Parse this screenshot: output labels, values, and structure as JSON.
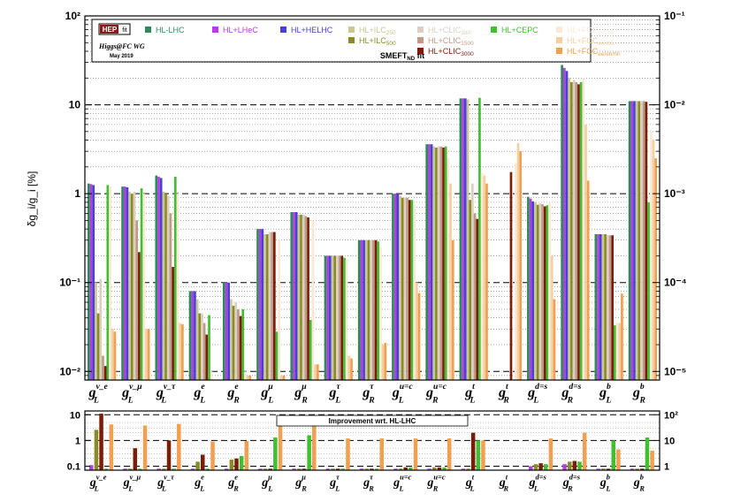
{
  "chart_data": [
    {
      "type": "bar",
      "ylabel": "δg_i/g_i [%]",
      "yscale": "log",
      "ylim": [
        0.008,
        100
      ],
      "yticks": [
        "10²",
        "10",
        "1",
        "10⁻¹",
        "10⁻²"
      ],
      "yticks_right": [
        "10⁻¹",
        "10⁻²",
        "10⁻³",
        "10⁻⁴",
        "10⁻⁵"
      ],
      "logo": "HEPfit",
      "wg_label": "Higgs@FC WG",
      "date_label": "May 2019",
      "fit_label": "SMEFT_ND fit",
      "categories": [
        {
          "base": "g",
          "sup": "ν_e",
          "sub": "L"
        },
        {
          "base": "g",
          "sup": "ν_μ",
          "sub": "L"
        },
        {
          "base": "g",
          "sup": "ν_τ",
          "sub": "L"
        },
        {
          "base": "g",
          "sup": "e",
          "sub": "L"
        },
        {
          "base": "g",
          "sup": "e",
          "sub": "R"
        },
        {
          "base": "g",
          "sup": "μ",
          "sub": "L"
        },
        {
          "base": "g",
          "sup": "μ",
          "sub": "R"
        },
        {
          "base": "g",
          "sup": "τ",
          "sub": "L"
        },
        {
          "base": "g",
          "sup": "τ",
          "sub": "R"
        },
        {
          "base": "g",
          "sup": "u=c",
          "sub": "L"
        },
        {
          "base": "g",
          "sup": "u=c",
          "sub": "R"
        },
        {
          "base": "g",
          "sup": "t",
          "sub": "L"
        },
        {
          "base": "g",
          "sup": "t",
          "sub": "R"
        },
        {
          "base": "g",
          "sup": "d=s",
          "sub": "L"
        },
        {
          "base": "g",
          "sup": "d=s",
          "sub": "R"
        },
        {
          "base": "g",
          "sup": "b",
          "sub": "L"
        },
        {
          "base": "g",
          "sup": "b",
          "sub": "R"
        }
      ],
      "series": [
        {
          "name": "HL-LHC",
          "color": "#2e8b57",
          "values": [
            1.3,
            1.2,
            1.6,
            0.08,
            0.1,
            0.4,
            0.62,
            0.2,
            0.3,
            1.0,
            3.6,
            11.8,
            null,
            0.92,
            28,
            0.35,
            11
          ]
        },
        {
          "name": "HL+LHeC",
          "color": "#b040e0",
          "values": [
            1.28,
            1.2,
            1.55,
            0.08,
            0.1,
            0.4,
            0.62,
            0.2,
            0.3,
            1.0,
            3.6,
            11.8,
            null,
            0.88,
            26,
            0.35,
            11
          ]
        },
        {
          "name": "HL+HELHC",
          "color": "#4a40d8",
          "values": [
            1.25,
            1.18,
            1.5,
            0.08,
            0.1,
            0.4,
            0.62,
            0.2,
            0.3,
            1.0,
            3.6,
            11.8,
            null,
            0.82,
            24,
            0.35,
            11
          ]
        },
        {
          "name": "HL+ILC250",
          "color": "#c8c890",
          "values": [
            0.1,
            1.05,
            1.05,
            0.065,
            0.065,
            0.35,
            0.58,
            0.2,
            0.3,
            0.95,
            3.4,
            11.5,
            null,
            0.8,
            20,
            0.35,
            11
          ]
        },
        {
          "name": "HL+ILC500",
          "color": "#8a8a28",
          "values": [
            0.045,
            1.0,
            1.0,
            0.045,
            0.055,
            0.35,
            0.58,
            0.2,
            0.3,
            0.9,
            3.3,
            0.85,
            null,
            0.75,
            18,
            0.35,
            11
          ]
        },
        {
          "name": "HL+CLIC380",
          "color": "#dccfc0",
          "values": [
            0.11,
            1.05,
            0.95,
            0.045,
            0.06,
            0.37,
            0.58,
            0.2,
            0.3,
            0.9,
            3.4,
            1.3,
            null,
            0.78,
            19,
            0.34,
            11
          ]
        },
        {
          "name": "HL+CLIC1500",
          "color": "#c09a88",
          "values": [
            0.015,
            0.5,
            0.6,
            0.035,
            0.05,
            0.37,
            0.56,
            0.2,
            0.3,
            0.9,
            3.4,
            0.6,
            null,
            0.76,
            18,
            0.34,
            11
          ]
        },
        {
          "name": "HL+CLIC3000",
          "color": "#7a1e08",
          "values": [
            0.0115,
            0.22,
            0.15,
            0.026,
            0.042,
            0.37,
            0.54,
            0.2,
            0.3,
            0.85,
            3.3,
            0.52,
            1.75,
            0.72,
            17,
            0.34,
            10.8
          ]
        },
        {
          "name": "HL+CEPC",
          "color": "#40c030",
          "values": [
            1.25,
            1.15,
            1.55,
            0.043,
            0.05,
            0.028,
            0.038,
            0.19,
            0.29,
            0.85,
            3.4,
            12,
            null,
            0.74,
            18,
            0.033,
            0.8
          ]
        },
        {
          "name": "HL+FCCee240",
          "color": "#fbe8d8",
          "values": [
            1.2,
            1.0,
            1.0,
            0.01,
            0.01,
            0.3,
            0.5,
            0.18,
            0.25,
            0.75,
            2.5,
            1.7,
            2.2,
            0.8,
            20,
            0.035,
            5.0
          ]
        },
        {
          "name": "HL+FCCee365",
          "color": "#f5cfa0",
          "values": [
            0.03,
            0.03,
            0.035,
            0.008,
            0.009,
            0.009,
            0.012,
            0.015,
            0.02,
            0.1,
            1.3,
            1.6,
            3.7,
            0.2,
            6.0,
            0.035,
            4.0
          ]
        },
        {
          "name": "HL+FCCee/eh/hh",
          "color": "#f0a050",
          "values": [
            0.028,
            0.03,
            0.034,
            0.008,
            0.009,
            0.009,
            0.012,
            0.014,
            0.021,
            0.076,
            0.3,
            1.3,
            3.0,
            0.065,
            1.4,
            0.075,
            2.5
          ]
        }
      ]
    },
    {
      "type": "bar",
      "title": "Improvement wrt. HL-LHC",
      "yscale": "log",
      "ylim": [
        0.07,
        14
      ],
      "yticks": [
        "10",
        "1",
        "0.1"
      ],
      "yticks_right": [
        "10²",
        "10",
        "1"
      ],
      "series": [
        {
          "name": "HL+LHeC",
          "color": "#b040e0",
          "values": [
            0.11,
            0.08,
            0.08,
            0.08,
            0.08,
            0.08,
            0.08,
            0.08,
            0.08,
            0.08,
            0.08,
            0.08,
            null,
            0.1,
            0.12,
            0.08,
            0.08
          ]
        },
        {
          "name": "HL+ILC500",
          "color": "#8a8a28",
          "values": [
            2.6,
            0.08,
            0.08,
            0.15,
            0.18,
            0.08,
            0.08,
            0.08,
            0.08,
            0.08,
            0.09,
            0.08,
            null,
            0.12,
            0.15,
            0.08,
            0.08
          ]
        },
        {
          "name": "HL+CLIC3000",
          "color": "#7a1e08",
          "values": [
            11,
            0.5,
            1.0,
            0.28,
            0.2,
            0.08,
            0.08,
            0.08,
            0.08,
            0.09,
            0.09,
            2.0,
            null,
            0.13,
            0.16,
            0.08,
            0.08
          ]
        },
        {
          "name": "HL+CEPC",
          "color": "#40c030",
          "values": [
            0.08,
            0.08,
            0.08,
            0.08,
            0.25,
            1.3,
            1.6,
            0.08,
            0.08,
            0.09,
            0.09,
            1.0,
            null,
            0.12,
            0.15,
            1.0,
            1.3
          ]
        },
        {
          "name": "HL+FCCee/eh/hh",
          "color": "#f0a050",
          "values": [
            4.2,
            3.8,
            4.4,
            0.9,
            0.95,
            3.8,
            4.5,
            1.2,
            1.2,
            1.2,
            1.2,
            1.0,
            null,
            1.2,
            2.0,
            0.45,
            0.4
          ]
        }
      ]
    }
  ],
  "legend": {
    "col1": [
      {
        "name": "HL-LHC",
        "color": "#2e8b57"
      }
    ],
    "col2": [
      {
        "name": "HL+LHeC",
        "color": "#b040e0"
      }
    ],
    "col3": [
      {
        "name": "HL+HELHC",
        "color": "#4a40d8"
      }
    ],
    "col4": [
      {
        "name": "HL+ILC250",
        "color": "#c8c890"
      },
      {
        "name": "HL+ILC500",
        "color": "#8a8a28"
      }
    ],
    "col5": [
      {
        "name": "HL+CLIC380",
        "color": "#dccfc0"
      },
      {
        "name": "HL+CLIC1500",
        "color": "#c09a88"
      },
      {
        "name": "HL+CLIC3000",
        "color": "#7a1e08"
      }
    ],
    "col6": [
      {
        "name": "HL+CEPC",
        "color": "#40c030"
      }
    ],
    "col7": [
      {
        "name": "HL+FCCee240",
        "color": "#fbe8d8"
      },
      {
        "name": "HL+FCCee365",
        "color": "#f5cfa0"
      },
      {
        "name": "HL+FCCee/eh/hh",
        "color": "#f0a050"
      }
    ]
  }
}
